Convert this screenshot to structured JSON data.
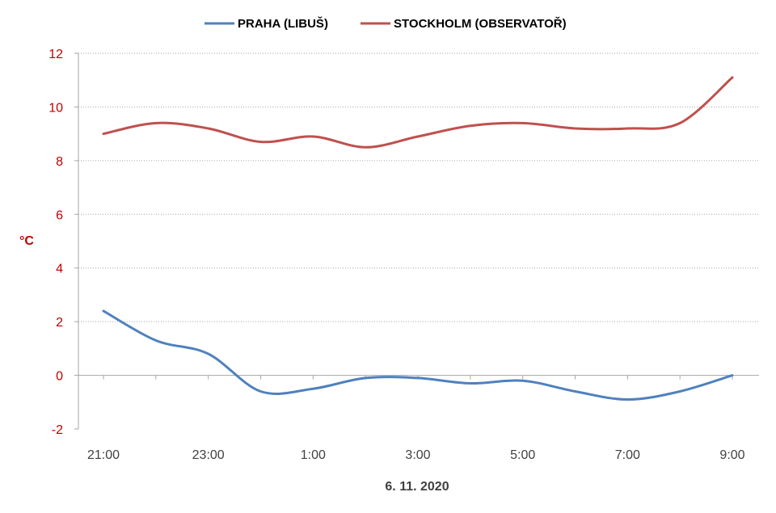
{
  "chart_data": {
    "type": "line",
    "xlabel": "6. 11. 2020",
    "ylabel": "°C",
    "ylim": [
      -2,
      12
    ],
    "yticks": [
      "12",
      "10",
      "8",
      "6",
      "4",
      "2",
      "0",
      "-2"
    ],
    "ytick_values": [
      12,
      10,
      8,
      6,
      4,
      2,
      0,
      -2
    ],
    "x": [
      "21:00",
      "22:00",
      "23:00",
      "0:00",
      "1:00",
      "2:00",
      "3:00",
      "4:00",
      "5:00",
      "6:00",
      "7:00",
      "8:00",
      "9:00"
    ],
    "xtick_labels": [
      "21:00",
      "",
      "23:00",
      "",
      "1:00",
      "",
      "3:00",
      "",
      "5:00",
      "",
      "7:00",
      "",
      "9:00"
    ],
    "grid": "horizontal dotted",
    "legend_position": "top",
    "series": [
      {
        "name": "PRAHA (LIBUŠ)",
        "color": "#4f81bd",
        "values": [
          2.4,
          1.3,
          0.8,
          -0.6,
          -0.5,
          -0.1,
          -0.1,
          -0.3,
          -0.2,
          -0.6,
          -0.9,
          -0.6,
          0.0
        ]
      },
      {
        "name": "STOCKHOLM (OBSERVATOŘ)",
        "color": "#c0504d",
        "values": [
          9.0,
          9.4,
          9.2,
          8.7,
          8.9,
          8.5,
          8.9,
          9.3,
          9.4,
          9.2,
          9.2,
          9.4,
          11.1
        ]
      }
    ]
  }
}
